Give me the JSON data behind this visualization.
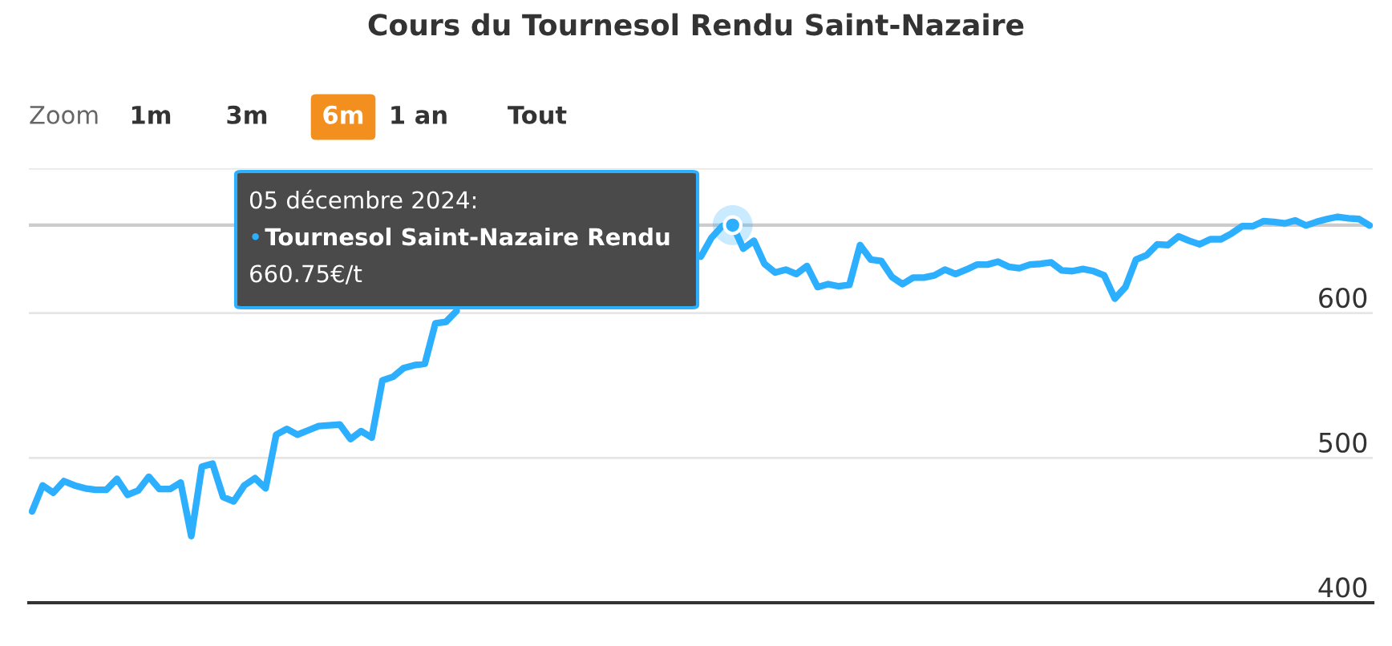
{
  "chart_data": {
    "type": "line",
    "title": "Cours du Tournesol Rendu Saint-Nazaire",
    "categories": [
      null,
      null,
      null,
      null,
      null,
      null,
      null,
      null,
      null,
      null,
      null,
      null,
      null,
      null,
      null,
      null,
      null,
      null,
      null,
      null,
      null,
      null,
      null,
      null,
      null,
      null,
      null,
      null,
      null,
      null,
      null,
      null,
      null,
      null,
      null,
      null,
      null,
      null,
      null,
      null,
      null,
      null,
      null,
      null,
      null,
      null,
      null,
      null,
      null,
      null,
      null,
      null,
      null,
      null,
      null,
      null,
      null,
      null,
      null,
      null,
      null,
      null,
      null,
      null,
      null,
      null,
      null,
      null,
      null,
      null,
      null,
      null,
      null,
      null,
      null,
      null,
      null,
      null,
      null,
      null,
      null,
      null,
      null,
      null,
      null,
      null,
      null,
      null,
      null,
      null,
      null,
      null,
      null,
      null,
      null,
      null,
      null,
      null,
      null,
      null,
      null,
      null,
      null,
      null,
      null,
      null,
      null,
      null,
      null,
      null,
      null,
      null,
      null,
      null,
      null,
      null,
      null,
      null,
      null,
      null,
      null,
      null,
      null,
      null,
      null,
      null,
      null
    ],
    "series": [
      {
        "color": "#2caffe",
        "values": [
          463,
          481,
          476,
          484,
          481,
          479,
          478,
          478,
          485.5,
          474.5,
          477.5,
          487,
          478.5,
          478.5,
          483,
          446,
          494,
          496,
          473,
          470,
          481,
          486,
          479,
          516,
          520,
          516,
          519,
          522,
          522.5,
          523,
          513,
          518.5,
          514,
          553.5,
          556,
          562,
          564,
          565,
          593,
          594,
          601.5,
          null,
          null,
          null,
          null,
          null,
          null,
          null,
          null,
          null,
          null,
          null,
          null,
          null,
          null,
          null,
          null,
          null,
          null,
          null,
          null,
          null,
          null,
          639,
          652,
          660,
          660.75,
          644.5,
          650,
          634,
          628,
          630,
          627,
          632.5,
          618,
          620,
          618.5,
          619.5,
          647,
          637,
          636,
          625,
          620,
          624.5,
          624.5,
          626,
          630,
          627,
          630,
          633.5,
          633.5,
          635.5,
          632,
          631,
          633.5,
          634,
          635,
          629.5,
          629,
          630.5,
          629,
          626,
          610,
          618,
          637,
          640,
          647.5,
          647,
          653,
          650,
          647.5,
          651,
          651,
          655,
          660,
          660,
          663.5,
          663,
          662,
          664,
          660.5,
          663,
          665,
          666.5,
          665.5,
          665,
          660.5
        ]
      }
    ],
    "ylim": [
      400,
      700
    ],
    "yticks": [
      400,
      500,
      600,
      {
        "value": 700,
        "label": null
      }
    ],
    "grid": "y",
    "ref_lines": [
      {
        "axis": "y",
        "value": 660.75,
        "color": "#cccccc"
      }
    ],
    "annotations": [
      "Zoom",
      "1m",
      "3m",
      "6m",
      "1 an",
      "Tout",
      {
        "text": "05 décembre 2024:\n• Tournesol Saint-Nazaire Rendu\n660.75€/t",
        "y": 660.75
      }
    ]
  }
}
